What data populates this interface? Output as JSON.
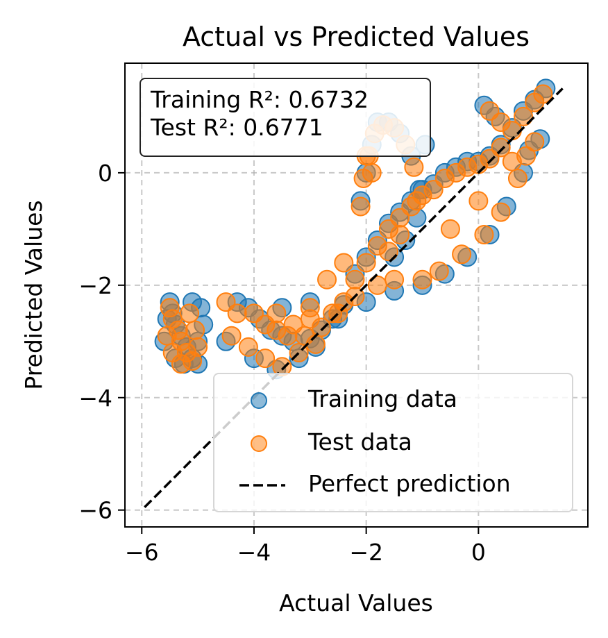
{
  "chart_data": {
    "type": "scatter",
    "title": "Actual vs Predicted Values",
    "xlabel": "Actual Values",
    "ylabel": "Predicted Values",
    "xlim": [
      -6.3,
      1.95
    ],
    "ylim": [
      -6.3,
      1.95
    ],
    "xticks": [
      {
        "value": -6,
        "label": "−6"
      },
      {
        "value": -4,
        "label": "−4"
      },
      {
        "value": -2,
        "label": "−2"
      },
      {
        "value": 0,
        "label": "0"
      }
    ],
    "yticks": [
      {
        "value": -6,
        "label": "−6"
      },
      {
        "value": -4,
        "label": "−4"
      },
      {
        "value": -2,
        "label": "−2"
      },
      {
        "value": 0,
        "label": "0"
      }
    ],
    "grid": true,
    "legend_position": "lower right",
    "annotation": {
      "lines": [
        "Training R²: 0.6732",
        "Test R²: 0.6771"
      ],
      "position": "top-left"
    },
    "series": [
      {
        "name": "Training data",
        "color": "#1f77b4",
        "marker": "circle",
        "points": [
          [
            -5.5,
            -2.3
          ],
          [
            -5.45,
            -2.5
          ],
          [
            -5.4,
            -2.7
          ],
          [
            -5.3,
            -2.9
          ],
          [
            -5.2,
            -3.1
          ],
          [
            -5.1,
            -3.3
          ],
          [
            -5.0,
            -3.4
          ],
          [
            -5.4,
            -3.3
          ],
          [
            -5.6,
            -3.0
          ],
          [
            -5.55,
            -2.6
          ],
          [
            -5.1,
            -2.3
          ],
          [
            -4.95,
            -2.4
          ],
          [
            -4.9,
            -2.7
          ],
          [
            -5.0,
            -3.0
          ],
          [
            -5.25,
            -3.4
          ],
          [
            -4.3,
            -2.3
          ],
          [
            -4.1,
            -2.4
          ],
          [
            -3.9,
            -2.6
          ],
          [
            -3.7,
            -2.8
          ],
          [
            -3.5,
            -2.9
          ],
          [
            -3.3,
            -3.0
          ],
          [
            -3.0,
            -2.95
          ],
          [
            -2.8,
            -2.8
          ],
          [
            -2.6,
            -2.6
          ],
          [
            -2.4,
            -2.35
          ],
          [
            -4.5,
            -3.0
          ],
          [
            -4.0,
            -3.3
          ],
          [
            -3.6,
            -3.5
          ],
          [
            -3.2,
            -3.3
          ],
          [
            -2.9,
            -3.1
          ],
          [
            -2.2,
            -1.8
          ],
          [
            -2.0,
            -1.5
          ],
          [
            -1.8,
            -1.2
          ],
          [
            -1.6,
            -0.9
          ],
          [
            -1.4,
            -0.7
          ],
          [
            -1.2,
            -0.5
          ],
          [
            -1.0,
            -0.3
          ],
          [
            -0.8,
            -0.2
          ],
          [
            -0.6,
            0.0
          ],
          [
            -0.4,
            0.1
          ],
          [
            -0.2,
            0.2
          ],
          [
            0.0,
            0.2
          ],
          [
            0.2,
            0.3
          ],
          [
            0.4,
            0.5
          ],
          [
            0.6,
            0.8
          ],
          [
            0.8,
            1.1
          ],
          [
            1.0,
            1.3
          ],
          [
            1.2,
            1.5
          ],
          [
            -2.1,
            -0.5
          ],
          [
            -2.0,
            0.0
          ],
          [
            -1.9,
            0.5
          ],
          [
            -1.8,
            0.9
          ],
          [
            -1.6,
            0.9
          ],
          [
            -1.4,
            0.7
          ],
          [
            -1.2,
            0.3
          ],
          [
            -1.05,
            -0.3
          ],
          [
            -1.1,
            -0.8
          ],
          [
            -0.95,
            0.5
          ],
          [
            -1.3,
            -1.2
          ],
          [
            -1.5,
            -1.5
          ],
          [
            -1.0,
            -2.0
          ],
          [
            -0.6,
            -1.8
          ],
          [
            -0.2,
            -1.5
          ],
          [
            0.2,
            -1.1
          ],
          [
            0.5,
            -0.6
          ],
          [
            0.8,
            0.0
          ],
          [
            0.9,
            0.4
          ],
          [
            1.1,
            0.6
          ],
          [
            0.1,
            1.2
          ],
          [
            0.3,
            1.0
          ],
          [
            -2.5,
            -2.6
          ],
          [
            -2.0,
            -2.3
          ],
          [
            -1.5,
            -2.1
          ],
          [
            -3.5,
            -2.4
          ],
          [
            -3.0,
            -2.3
          ]
        ]
      },
      {
        "name": "Test data",
        "color": "#ff7f0e",
        "marker": "circle",
        "points": [
          [
            -5.5,
            -2.4
          ],
          [
            -5.45,
            -2.6
          ],
          [
            -5.35,
            -2.8
          ],
          [
            -5.3,
            -3.0
          ],
          [
            -5.2,
            -3.2
          ],
          [
            -5.1,
            -3.35
          ],
          [
            -5.45,
            -3.2
          ],
          [
            -5.55,
            -2.9
          ],
          [
            -5.15,
            -2.5
          ],
          [
            -5.05,
            -2.8
          ],
          [
            -5.0,
            -3.1
          ],
          [
            -5.3,
            -3.4
          ],
          [
            -4.5,
            -2.3
          ],
          [
            -4.3,
            -2.5
          ],
          [
            -4.0,
            -2.5
          ],
          [
            -3.8,
            -2.7
          ],
          [
            -3.6,
            -2.8
          ],
          [
            -3.4,
            -2.9
          ],
          [
            -3.1,
            -2.9
          ],
          [
            -2.8,
            -2.75
          ],
          [
            -2.6,
            -2.5
          ],
          [
            -2.4,
            -2.3
          ],
          [
            -4.4,
            -2.9
          ],
          [
            -4.1,
            -3.1
          ],
          [
            -3.8,
            -3.3
          ],
          [
            -3.5,
            -3.45
          ],
          [
            -3.2,
            -3.2
          ],
          [
            -2.9,
            -3.05
          ],
          [
            -3.0,
            -2.6
          ],
          [
            -3.3,
            -2.7
          ],
          [
            -2.2,
            -1.9
          ],
          [
            -2.0,
            -1.6
          ],
          [
            -1.8,
            -1.3
          ],
          [
            -1.6,
            -1.0
          ],
          [
            -1.4,
            -0.8
          ],
          [
            -1.2,
            -0.6
          ],
          [
            -1.0,
            -0.4
          ],
          [
            -0.8,
            -0.3
          ],
          [
            -0.6,
            -0.1
          ],
          [
            -0.4,
            0.0
          ],
          [
            -0.2,
            0.1
          ],
          [
            0.0,
            0.15
          ],
          [
            0.2,
            0.25
          ],
          [
            0.4,
            0.45
          ],
          [
            0.6,
            0.75
          ],
          [
            0.8,
            1.0
          ],
          [
            1.0,
            1.25
          ],
          [
            1.15,
            1.4
          ],
          [
            -2.1,
            -0.6
          ],
          [
            -2.05,
            -0.1
          ],
          [
            -1.95,
            0.3
          ],
          [
            -1.85,
            0.7
          ],
          [
            -1.7,
            0.85
          ],
          [
            -1.5,
            0.8
          ],
          [
            -1.3,
            0.5
          ],
          [
            -1.15,
            0.1
          ],
          [
            -1.1,
            -0.5
          ],
          [
            -1.4,
            -1.1
          ],
          [
            -1.6,
            -1.4
          ],
          [
            -1.9,
            0.0
          ],
          [
            -2.0,
            0.3
          ],
          [
            -1.0,
            -1.9
          ],
          [
            -0.7,
            -1.75
          ],
          [
            -0.3,
            -1.45
          ],
          [
            0.1,
            -1.1
          ],
          [
            0.4,
            -0.7
          ],
          [
            0.7,
            -0.1
          ],
          [
            0.85,
            0.3
          ],
          [
            1.0,
            0.55
          ],
          [
            0.2,
            1.1
          ],
          [
            0.4,
            0.9
          ],
          [
            0.6,
            0.2
          ],
          [
            0.0,
            -0.5
          ],
          [
            -0.5,
            -1.0
          ],
          [
            -1.5,
            -1.9
          ],
          [
            -2.5,
            -2.5
          ],
          [
            -2.2,
            -2.2
          ],
          [
            -1.8,
            -2.0
          ],
          [
            -3.6,
            -2.5
          ],
          [
            -3.0,
            -2.4
          ],
          [
            -2.7,
            -1.9
          ],
          [
            -2.4,
            -1.6
          ]
        ]
      },
      {
        "name": "Perfect prediction",
        "color": "#000000",
        "line_style": "dashed",
        "points": [
          [
            -5.95,
            -5.95
          ],
          [
            1.5,
            1.5
          ]
        ]
      }
    ]
  }
}
